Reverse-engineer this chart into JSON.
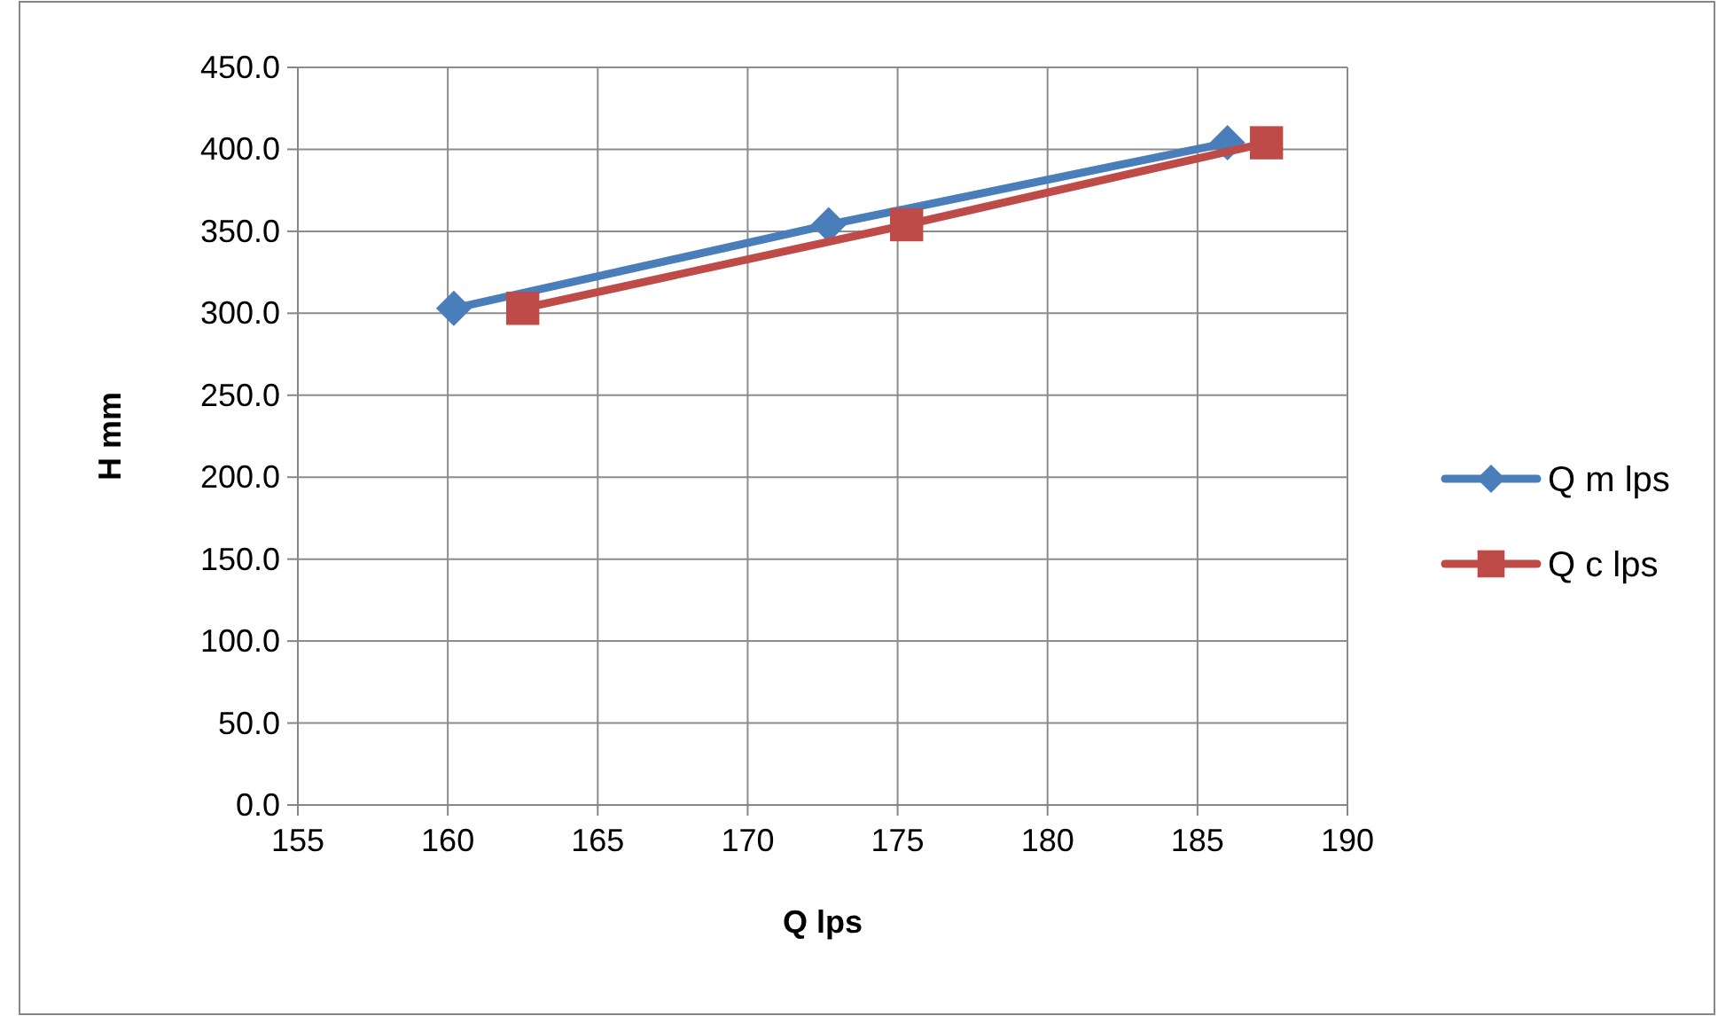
{
  "chart_data": {
    "type": "line",
    "xlabel": "Q lps",
    "ylabel": "H mm",
    "xlim": [
      155,
      190
    ],
    "xticks": [
      155,
      160,
      165,
      170,
      175,
      180,
      185,
      190
    ],
    "ylim": [
      0,
      450
    ],
    "yticks": [
      {
        "value": 0,
        "label": "0.0"
      },
      {
        "value": 50,
        "label": "50.0"
      },
      {
        "value": 100,
        "label": "100.0"
      },
      {
        "value": 150,
        "label": "150.0"
      },
      {
        "value": 200,
        "label": "200.0"
      },
      {
        "value": 250,
        "label": "250.0"
      },
      {
        "value": 300,
        "label": "300.0"
      },
      {
        "value": 350,
        "label": "350.0"
      },
      {
        "value": 400,
        "label": "400.0"
      },
      {
        "value": 450,
        "label": "450.0"
      }
    ],
    "grid": true,
    "legend": "right",
    "line_style": "solid",
    "series": [
      {
        "name": "Q m lps",
        "color": "#4a7ebb",
        "marker": "diamond",
        "x": [
          160.2,
          172.7,
          186.0
        ],
        "values": [
          303,
          354,
          404
        ]
      },
      {
        "name": "Q c lps",
        "color": "#be4b48",
        "marker": "square",
        "x": [
          162.5,
          175.3,
          187.3
        ],
        "values": [
          303,
          354,
          404
        ]
      }
    ]
  }
}
